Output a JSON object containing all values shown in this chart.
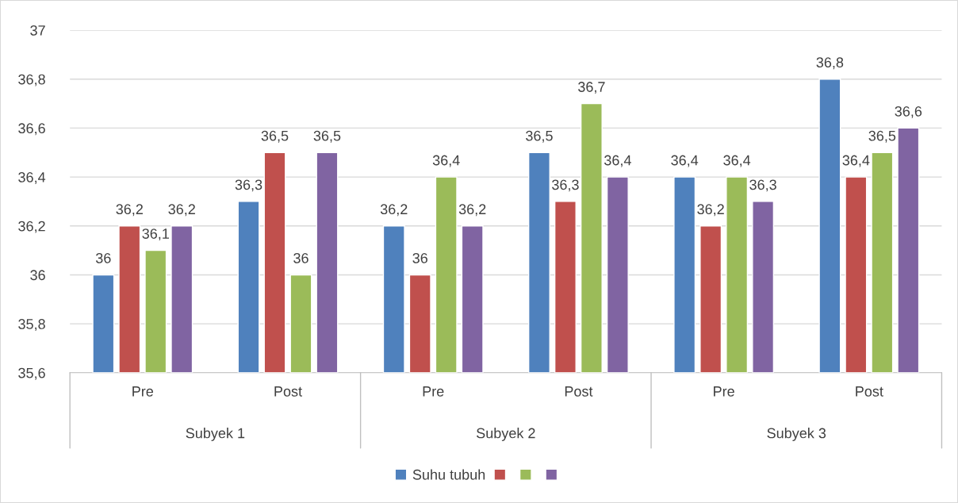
{
  "chart_data": {
    "type": "bar",
    "categories": [
      "Pre",
      "Post",
      "Pre",
      "Post",
      "Pre",
      "Post"
    ],
    "annotations": [
      "Subyek 1",
      "Subyek 2",
      "Subyek 3"
    ],
    "series": [
      {
        "name": "Suhu tubuh",
        "color": "#4f81bd",
        "values": [
          36,
          36.3,
          36.2,
          36.5,
          36.4,
          36.8
        ],
        "value_labels": [
          "36",
          "36,3",
          "36,2",
          "36,5",
          "36,4",
          "36,8"
        ]
      },
      {
        "color": "#c0504d",
        "values": [
          36.2,
          36.5,
          36,
          36.3,
          36.2,
          36.4
        ],
        "value_labels": [
          "36,2",
          "36,5",
          "36",
          "36,3",
          "36,2",
          "36,4"
        ]
      },
      {
        "color": "#9bbb59",
        "values": [
          36.1,
          36,
          36.4,
          36.7,
          36.4,
          36.5
        ],
        "value_labels": [
          "36,1",
          "36",
          "36,4",
          "36,7",
          "36,4",
          "36,5"
        ]
      },
      {
        "color": "#8064a2",
        "values": [
          36.2,
          36.5,
          36.2,
          36.4,
          36.3,
          36.6
        ],
        "value_labels": [
          "36,2",
          "36,5",
          "36,2",
          "36,4",
          "36,3",
          "36,6"
        ]
      }
    ],
    "ylim": [
      35.6,
      37
    ],
    "yticks": [
      {
        "value": 35.6,
        "label": "35,6"
      },
      {
        "value": 35.8,
        "label": "35,8"
      },
      36,
      {
        "value": 36.2,
        "label": "36,2"
      },
      {
        "value": 36.4,
        "label": "36,4"
      },
      {
        "value": 36.6,
        "label": "36,6"
      },
      {
        "value": 36.8,
        "label": "36,8"
      },
      37
    ],
    "grid": "y",
    "legend": "bottom"
  }
}
